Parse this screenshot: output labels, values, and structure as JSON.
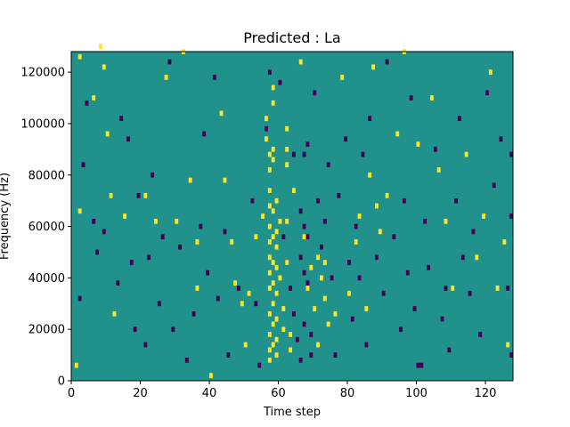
{
  "chart_data": {
    "type": "heatmap",
    "title": "Predicted : La",
    "xlabel": "Time step",
    "ylabel": "Frequency (Hz)",
    "xlim": [
      0,
      128
    ],
    "ylim": [
      0,
      128000
    ],
    "xticks": [
      0,
      20,
      40,
      60,
      80,
      100,
      120
    ],
    "yticks": [
      0,
      20000,
      40000,
      60000,
      80000,
      100000,
      120000
    ],
    "colormap": "viridis",
    "value_levels": {
      "low": "#440154",
      "mid": "#21918c",
      "high": "#fde725"
    },
    "background_level": "mid",
    "grid": false,
    "legend": "none",
    "high_cells": [
      [
        2,
        126000
      ],
      [
        2,
        66000
      ],
      [
        1,
        6000
      ],
      [
        8,
        130000
      ],
      [
        9,
        122000
      ],
      [
        6,
        110000
      ],
      [
        10,
        96000
      ],
      [
        11,
        72000
      ],
      [
        15,
        64000
      ],
      [
        12,
        26000
      ],
      [
        21,
        72000
      ],
      [
        24,
        62000
      ],
      [
        27,
        118000
      ],
      [
        30,
        62000
      ],
      [
        32,
        128000
      ],
      [
        34,
        78000
      ],
      [
        36,
        54000
      ],
      [
        36,
        36000
      ],
      [
        40,
        2000
      ],
      [
        43,
        104000
      ],
      [
        44,
        78000
      ],
      [
        46,
        54000
      ],
      [
        47,
        38000
      ],
      [
        49,
        30000
      ],
      [
        50,
        14000
      ],
      [
        51,
        34000
      ],
      [
        53,
        56000
      ],
      [
        55,
        64000
      ],
      [
        56,
        102000
      ],
      [
        56,
        94000
      ],
      [
        57,
        88000
      ],
      [
        57,
        82000
      ],
      [
        57,
        74000
      ],
      [
        57,
        68000
      ],
      [
        57,
        60000
      ],
      [
        57,
        54000
      ],
      [
        57,
        48000
      ],
      [
        57,
        42000
      ],
      [
        57,
        36000
      ],
      [
        57,
        26000
      ],
      [
        57,
        18000
      ],
      [
        57,
        12000
      ],
      [
        57,
        8000
      ],
      [
        58,
        114000
      ],
      [
        58,
        108000
      ],
      [
        58,
        90000
      ],
      [
        58,
        86000
      ],
      [
        58,
        66000
      ],
      [
        58,
        56000
      ],
      [
        58,
        46000
      ],
      [
        58,
        38000
      ],
      [
        58,
        30000
      ],
      [
        58,
        22000
      ],
      [
        58,
        14000
      ],
      [
        59,
        70000
      ],
      [
        59,
        58000
      ],
      [
        59,
        52000
      ],
      [
        59,
        44000
      ],
      [
        59,
        34000
      ],
      [
        59,
        24000
      ],
      [
        59,
        16000
      ],
      [
        59,
        10000
      ],
      [
        60,
        62000
      ],
      [
        60,
        40000
      ],
      [
        61,
        28000
      ],
      [
        61,
        20000
      ],
      [
        62,
        98000
      ],
      [
        62,
        90000
      ],
      [
        62,
        84000
      ],
      [
        62,
        62000
      ],
      [
        62,
        46000
      ],
      [
        63,
        18000
      ],
      [
        63,
        12000
      ],
      [
        64,
        74000
      ],
      [
        66,
        124000
      ],
      [
        67,
        56000
      ],
      [
        68,
        36000
      ],
      [
        69,
        44000
      ],
      [
        70,
        28000
      ],
      [
        71,
        48000
      ],
      [
        71,
        14000
      ],
      [
        72,
        40000
      ],
      [
        73,
        46000
      ],
      [
        73,
        32000
      ],
      [
        74,
        22000
      ],
      [
        76,
        26000
      ],
      [
        78,
        118000
      ],
      [
        80,
        34000
      ],
      [
        82,
        54000
      ],
      [
        83,
        64000
      ],
      [
        85,
        28000
      ],
      [
        86,
        80000
      ],
      [
        87,
        122000
      ],
      [
        88,
        68000
      ],
      [
        89,
        58000
      ],
      [
        91,
        72000
      ],
      [
        94,
        96000
      ],
      [
        96,
        128000
      ],
      [
        100,
        92000
      ],
      [
        104,
        110000
      ],
      [
        106,
        82000
      ],
      [
        108,
        62000
      ],
      [
        110,
        36000
      ],
      [
        114,
        88000
      ],
      [
        117,
        48000
      ],
      [
        119,
        64000
      ],
      [
        121,
        120000
      ],
      [
        123,
        36000
      ],
      [
        125,
        54000
      ],
      [
        126,
        14000
      ]
    ],
    "low_cells": [
      [
        2,
        32000
      ],
      [
        3,
        84000
      ],
      [
        4,
        108000
      ],
      [
        6,
        62000
      ],
      [
        7,
        50000
      ],
      [
        9,
        58000
      ],
      [
        13,
        38000
      ],
      [
        14,
        102000
      ],
      [
        16,
        94000
      ],
      [
        17,
        46000
      ],
      [
        18,
        20000
      ],
      [
        19,
        72000
      ],
      [
        21,
        14000
      ],
      [
        22,
        48000
      ],
      [
        23,
        80000
      ],
      [
        25,
        30000
      ],
      [
        26,
        56000
      ],
      [
        28,
        124000
      ],
      [
        29,
        20000
      ],
      [
        31,
        52000
      ],
      [
        33,
        8000
      ],
      [
        35,
        26000
      ],
      [
        37,
        60000
      ],
      [
        38,
        96000
      ],
      [
        39,
        42000
      ],
      [
        41,
        118000
      ],
      [
        42,
        32000
      ],
      [
        44,
        58000
      ],
      [
        45,
        10000
      ],
      [
        48,
        36000
      ],
      [
        52,
        70000
      ],
      [
        53,
        30000
      ],
      [
        54,
        6000
      ],
      [
        56,
        98000
      ],
      [
        57,
        120000
      ],
      [
        60,
        116000
      ],
      [
        61,
        56000
      ],
      [
        62,
        46000
      ],
      [
        63,
        36000
      ],
      [
        64,
        26000
      ],
      [
        64,
        88000
      ],
      [
        65,
        16000
      ],
      [
        66,
        66000
      ],
      [
        66,
        48000
      ],
      [
        66,
        8000
      ],
      [
        67,
        88000
      ],
      [
        67,
        60000
      ],
      [
        67,
        42000
      ],
      [
        67,
        22000
      ],
      [
        68,
        92000
      ],
      [
        68,
        56000
      ],
      [
        68,
        38000
      ],
      [
        69,
        18000
      ],
      [
        69,
        10000
      ],
      [
        70,
        112000
      ],
      [
        71,
        70000
      ],
      [
        72,
        52000
      ],
      [
        73,
        62000
      ],
      [
        74,
        84000
      ],
      [
        75,
        40000
      ],
      [
        76,
        10000
      ],
      [
        77,
        72000
      ],
      [
        79,
        94000
      ],
      [
        80,
        46000
      ],
      [
        81,
        24000
      ],
      [
        82,
        60000
      ],
      [
        83,
        40000
      ],
      [
        84,
        88000
      ],
      [
        85,
        14000
      ],
      [
        86,
        102000
      ],
      [
        88,
        48000
      ],
      [
        90,
        34000
      ],
      [
        91,
        124000
      ],
      [
        93,
        56000
      ],
      [
        95,
        20000
      ],
      [
        96,
        70000
      ],
      [
        97,
        42000
      ],
      [
        98,
        110000
      ],
      [
        99,
        28000
      ],
      [
        100,
        6000
      ],
      [
        101,
        6000
      ],
      [
        102,
        62000
      ],
      [
        103,
        44000
      ],
      [
        105,
        90000
      ],
      [
        107,
        24000
      ],
      [
        108,
        36000
      ],
      [
        109,
        12000
      ],
      [
        111,
        70000
      ],
      [
        112,
        102000
      ],
      [
        113,
        48000
      ],
      [
        115,
        34000
      ],
      [
        116,
        58000
      ],
      [
        118,
        18000
      ],
      [
        120,
        112000
      ],
      [
        122,
        76000
      ],
      [
        124,
        94000
      ],
      [
        126,
        36000
      ],
      [
        127,
        88000
      ],
      [
        127,
        64000
      ],
      [
        127,
        10000
      ]
    ]
  }
}
